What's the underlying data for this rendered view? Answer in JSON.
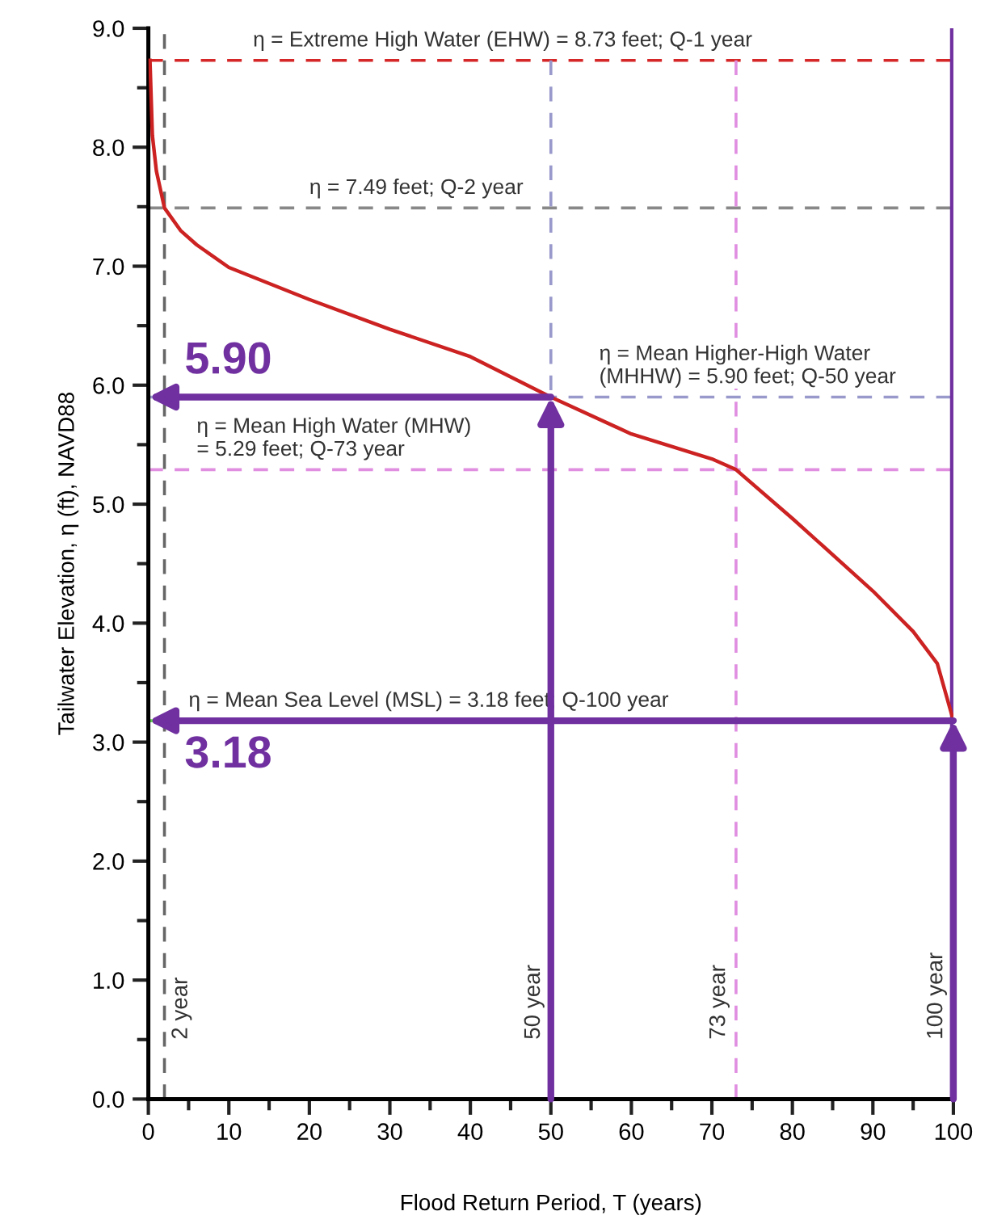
{
  "chart_data": {
    "type": "line",
    "xlabel": "Flood Return Period, T (years)",
    "ylabel": "Tailwater Elevation, η (ft), NAVD88",
    "xlim": [
      0,
      100
    ],
    "ylim": [
      0,
      9
    ],
    "xticks": [
      0,
      10,
      20,
      30,
      40,
      50,
      60,
      70,
      80,
      90,
      100
    ],
    "yticks": [
      {
        "value": 0,
        "label": "0.0"
      },
      {
        "value": 1,
        "label": "1.0"
      },
      {
        "value": 2,
        "label": "2.0"
      },
      {
        "value": 3,
        "label": "3.0"
      },
      {
        "value": 4,
        "label": "4.0"
      },
      {
        "value": 5,
        "label": "5.0"
      },
      {
        "value": 6,
        "label": "6.0"
      },
      {
        "value": 7,
        "label": "7.0"
      },
      {
        "value": 8,
        "label": "8.0"
      },
      {
        "value": 9,
        "label": "9.0"
      }
    ],
    "grid": false,
    "legend": false,
    "marker": "none",
    "line_style": "solid",
    "series": [
      {
        "color": "#cc2222",
        "x": [
          0.2,
          0.5,
          1,
          2,
          4,
          6,
          10,
          20,
          30,
          40,
          50,
          60,
          70,
          73,
          80,
          90,
          95,
          98,
          100
        ],
        "values": [
          8.73,
          8.1,
          7.8,
          7.49,
          7.3,
          7.18,
          6.99,
          6.72,
          6.47,
          6.24,
          5.9,
          5.59,
          5.38,
          5.29,
          4.88,
          4.27,
          3.93,
          3.66,
          3.18
        ]
      }
    ],
    "ref_lines": [
      {
        "axis": "y",
        "value": 8.73,
        "label": "η = Extreme High Water (EHW) = 8.73 feet; Q-1 year",
        "color": "#d62728",
        "line_style": "dashed"
      },
      {
        "axis": "y",
        "value": 7.49,
        "label": "η = 7.49 feet; Q-2 year",
        "color": "#888888",
        "line_style": "dashed"
      },
      {
        "axis": "y",
        "value": 5.9,
        "label": "η = Mean Higher-High Water\n(MHHW) = 5.90 feet; Q-50 year",
        "color": "#9999cc",
        "line_style": "dashed"
      },
      {
        "axis": "y",
        "value": 5.29,
        "label": "η = Mean High Water (MHW)\n= 5.29 feet; Q-73 year",
        "color": "#e08ee0",
        "line_style": "dashed"
      },
      {
        "axis": "y",
        "value": 3.18,
        "label": "η = Mean Sea Level (MSL) = 3.18 feet; Q-100 year",
        "color": "#66cc55",
        "line_style": "dashed"
      },
      {
        "axis": "x",
        "value": 2,
        "label": "2 year",
        "color": "#666666",
        "line_style": "dashed"
      },
      {
        "axis": "x",
        "value": 50,
        "label": "50 year",
        "color": "#9999cc",
        "line_style": "dashed"
      },
      {
        "axis": "x",
        "value": 73,
        "label": "73 year",
        "color": "#e08ee0",
        "line_style": "dashed"
      },
      {
        "axis": "x",
        "value": 100,
        "label": "100 year",
        "color": "#7030a0",
        "line_style": "solid"
      }
    ],
    "annotations": [
      {
        "text": "5.90",
        "x": 50,
        "y": 5.9
      },
      {
        "text": "3.18",
        "x": 100,
        "y": 3.18
      }
    ]
  }
}
